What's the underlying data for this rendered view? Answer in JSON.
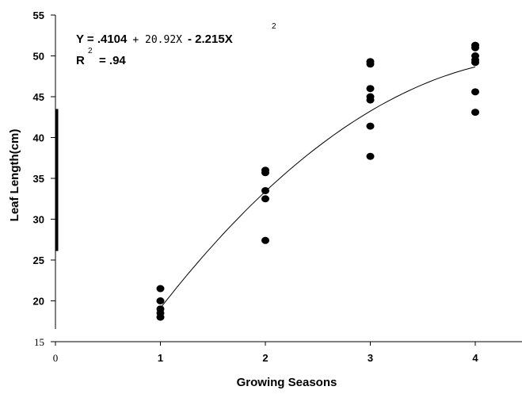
{
  "chart_data": {
    "type": "scatter",
    "xlabel": "Growing Seasons",
    "ylabel": "Leaf Length(cm)",
    "xlim": [
      0,
      4.5
    ],
    "ylim": [
      15,
      55
    ],
    "x_ticks": [
      0,
      1,
      2,
      3,
      4
    ],
    "y_ticks": [
      15,
      20,
      25,
      30,
      35,
      40,
      45,
      50,
      55
    ],
    "grid": false,
    "equation": {
      "y_term": "Y = .4104",
      "linear_term": "+ 20.92X",
      "quadratic_term": "- 2.215X",
      "exponent": "2",
      "r2_label": "R",
      "r2_exponent": "2",
      "r2_value": "= .94"
    },
    "fit": {
      "intercept": 0.4104,
      "b1": 20.92,
      "b2": -2.215,
      "x_range": [
        1,
        4
      ]
    },
    "points": [
      {
        "x": 1,
        "y": 21.5
      },
      {
        "x": 1,
        "y": 20.0
      },
      {
        "x": 1,
        "y": 19.0
      },
      {
        "x": 1,
        "y": 18.5
      },
      {
        "x": 1,
        "y": 18.0
      },
      {
        "x": 2,
        "y": 36.0
      },
      {
        "x": 2,
        "y": 35.7
      },
      {
        "x": 2,
        "y": 33.5
      },
      {
        "x": 2,
        "y": 32.5
      },
      {
        "x": 2,
        "y": 27.4
      },
      {
        "x": 3,
        "y": 49.3
      },
      {
        "x": 3,
        "y": 49.0
      },
      {
        "x": 3,
        "y": 46.0
      },
      {
        "x": 3,
        "y": 45.0
      },
      {
        "x": 3,
        "y": 44.6
      },
      {
        "x": 3,
        "y": 41.4
      },
      {
        "x": 3,
        "y": 37.7
      },
      {
        "x": 4,
        "y": 51.3
      },
      {
        "x": 4,
        "y": 51.0
      },
      {
        "x": 4,
        "y": 50.0
      },
      {
        "x": 4,
        "y": 49.5
      },
      {
        "x": 4,
        "y": 49.2
      },
      {
        "x": 4,
        "y": 45.6
      },
      {
        "x": 4,
        "y": 43.1
      }
    ]
  }
}
